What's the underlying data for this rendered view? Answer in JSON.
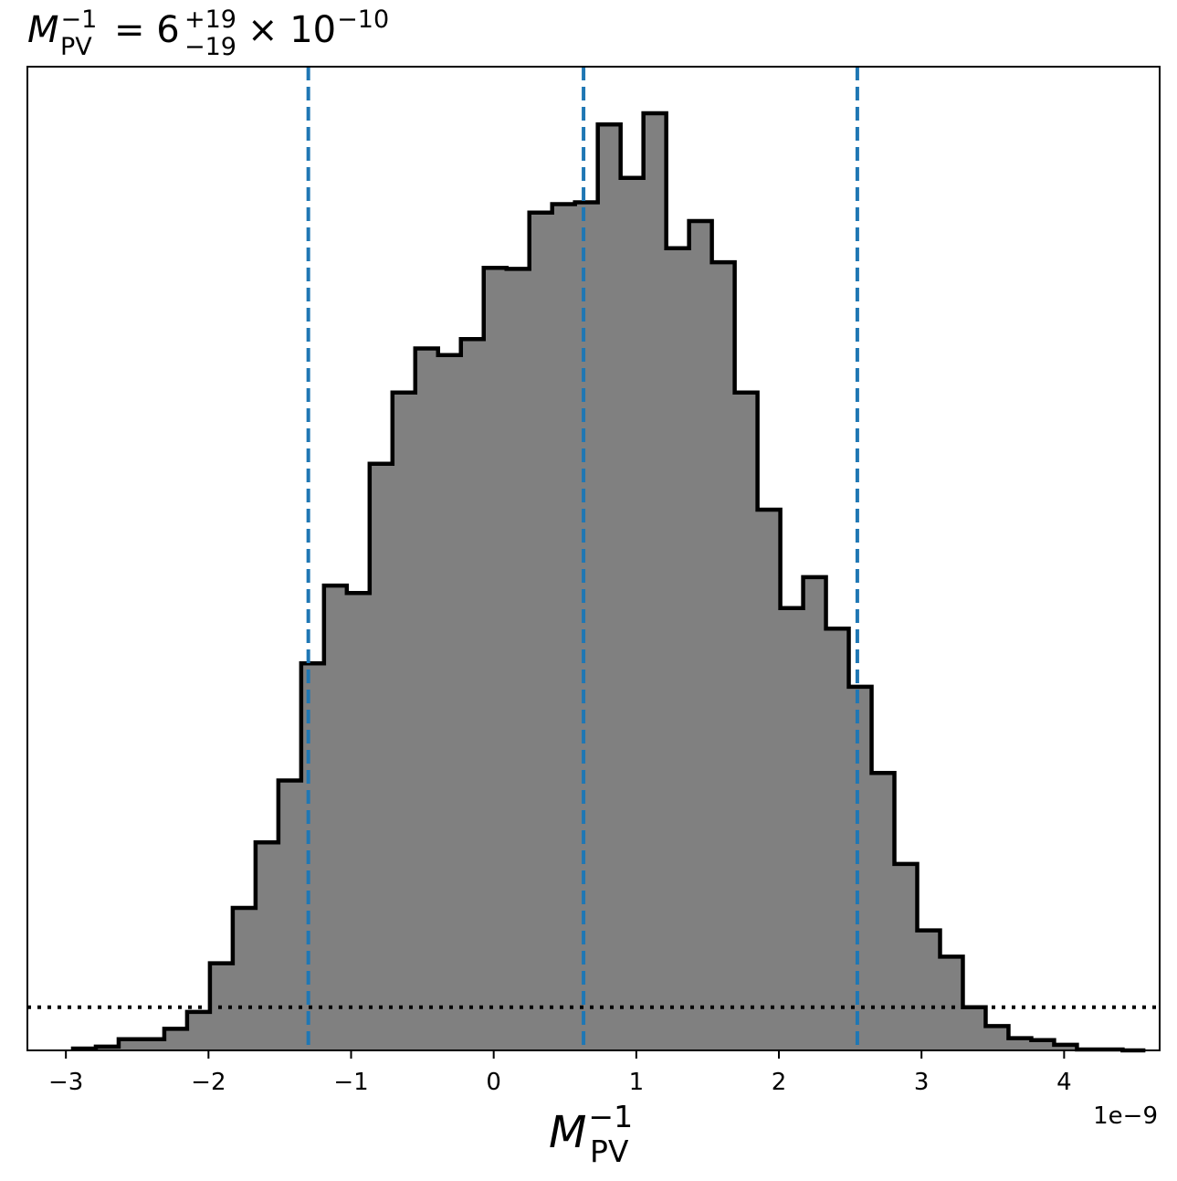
{
  "chart_data": {
    "type": "histogram",
    "title": {
      "var": "M",
      "var_sup": "−1",
      "var_sub": "PV",
      "equals": "= 6",
      "err_plus": "+19",
      "err_minus": "−19",
      "times": "× 10",
      "exp": "−10"
    },
    "xlabel": {
      "var": "M",
      "var_sup": "−1",
      "var_sub": "PV"
    },
    "x_offset_text": "1e−9",
    "xlim": [
      -3.27,
      4.67
    ],
    "ylim": [
      0,
      1.0
    ],
    "x_ticks": [
      -3,
      -2,
      -1,
      0,
      1,
      2,
      3,
      4
    ],
    "x_tick_labels": [
      "−3",
      "−2",
      "−1",
      "0",
      "1",
      "2",
      "3",
      "4"
    ],
    "y_axis_visible": false,
    "bin_edges": [
      -2.95,
      -2.79,
      -2.63,
      -2.47,
      -2.31,
      -2.15,
      -1.99,
      -1.83,
      -1.67,
      -1.51,
      -1.35,
      -1.19,
      -1.03,
      -0.87,
      -0.71,
      -0.55,
      -0.39,
      -0.23,
      -0.07,
      0.09,
      0.25,
      0.41,
      0.57,
      0.73,
      0.89,
      1.05,
      1.21,
      1.37,
      1.53,
      1.69,
      1.85,
      2.01,
      2.17,
      2.33,
      2.49,
      2.65,
      2.81,
      2.97,
      3.13,
      3.29,
      3.45,
      3.61,
      3.77,
      3.93,
      4.09,
      4.25,
      4.41,
      4.57
    ],
    "counts": [
      0.002,
      0.004,
      0.012,
      0.012,
      0.023,
      0.041,
      0.093,
      0.152,
      0.222,
      0.288,
      0.413,
      0.496,
      0.488,
      0.626,
      0.702,
      0.749,
      0.742,
      0.759,
      0.835,
      0.834,
      0.894,
      0.903,
      0.905,
      0.988,
      0.931,
      1.0,
      0.856,
      0.885,
      0.841,
      0.702,
      0.577,
      0.472,
      0.505,
      0.45,
      0.388,
      0.296,
      0.199,
      0.128,
      0.1,
      0.046,
      0.026,
      0.013,
      0.011,
      0.006,
      0.001,
      0.001,
      0.0
    ],
    "fill_color": "#808080",
    "edge_color": "#000000",
    "vlines": {
      "values": [
        -1.3,
        0.63,
        2.55
      ],
      "color": "#1f77b4",
      "style": "dashed"
    },
    "hline": {
      "value": 0.046,
      "color": "#000000",
      "style": "dotted"
    }
  }
}
